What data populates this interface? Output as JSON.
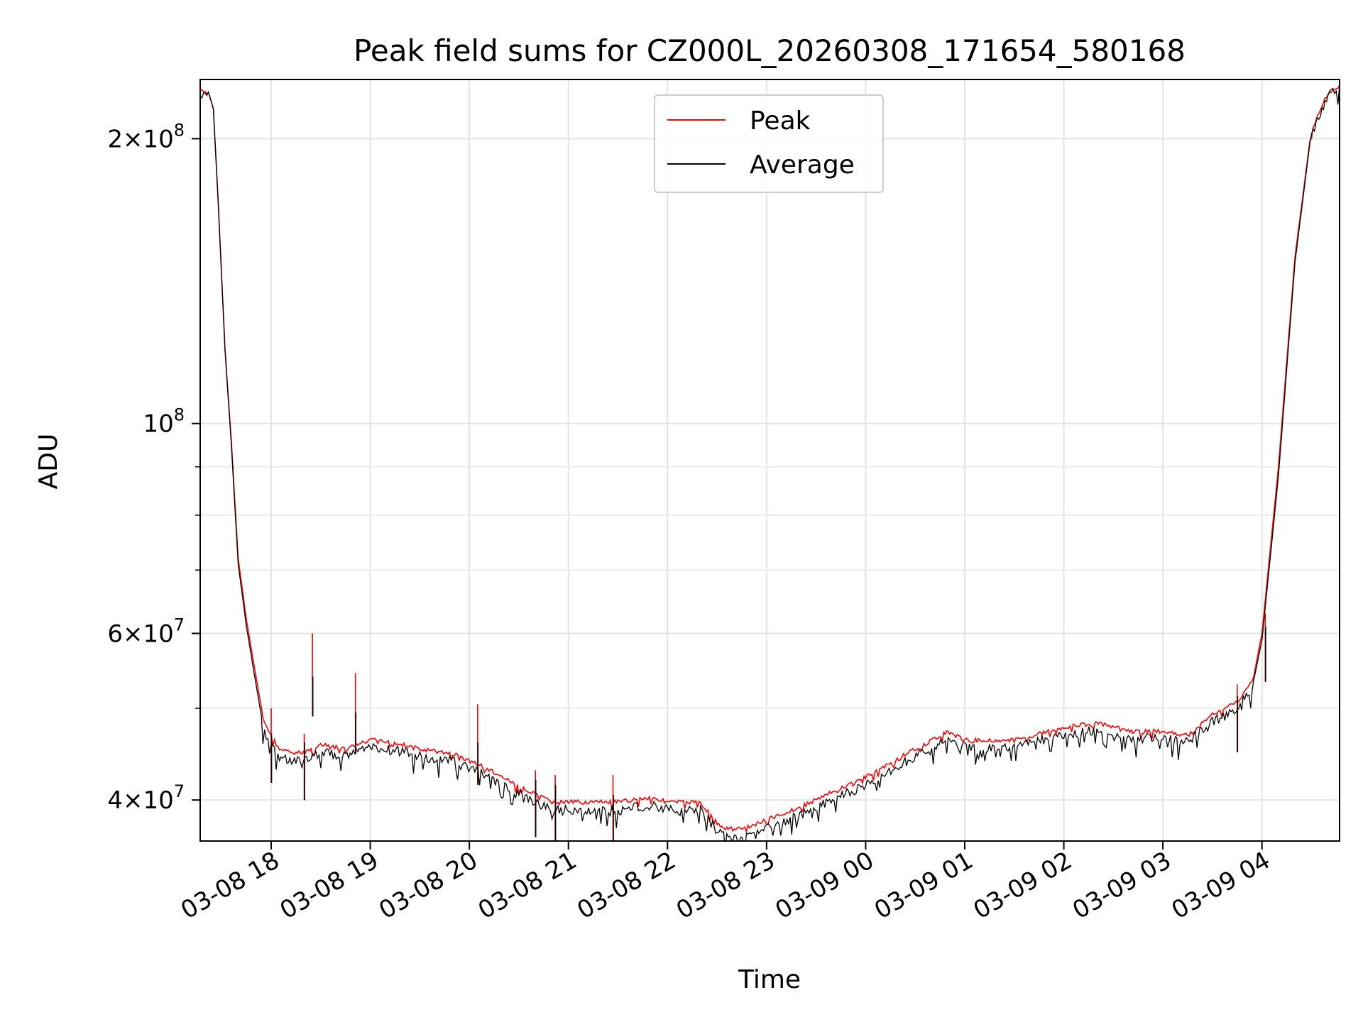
{
  "chart_data": {
    "type": "line",
    "title": "Peak field sums for CZ000L_20260308_171654_580168",
    "xlabel": "Time",
    "ylabel": "ADU",
    "y_scale": "log",
    "ylim": [
      36200000,
      231000000
    ],
    "xlim": [
      "03-08 17:17",
      "03-09 04:47"
    ],
    "grid": true,
    "legend": {
      "placement": "upper center",
      "entries": [
        "Peak",
        "Average"
      ]
    },
    "x_ticks": [
      "03-08 18",
      "03-08 19",
      "03-08 20",
      "03-08 21",
      "03-08 22",
      "03-08 23",
      "03-09 00",
      "03-09 01",
      "03-09 02",
      "03-09 03",
      "03-09 04"
    ],
    "y_ticks_major": [
      {
        "value": 200000000,
        "mantissa": "2",
        "exponent": "8"
      },
      {
        "value": 100000000,
        "mantissa": "",
        "exponent": "8"
      },
      {
        "value": 60000000,
        "mantissa": "6",
        "exponent": "7"
      },
      {
        "value": 40000000,
        "mantissa": "4",
        "exponent": "7"
      }
    ],
    "y_ticks_minor": [
      50000000,
      70000000,
      80000000,
      90000000
    ],
    "series": [
      {
        "name": "Peak",
        "color": "#ff0000",
        "x": [
          "03-08 17:17",
          "03-08 17:22",
          "03-08 17:25",
          "03-08 17:28",
          "03-08 17:32",
          "03-08 17:36",
          "03-08 17:40",
          "03-08 17:45",
          "03-08 17:50",
          "03-08 17:55",
          "03-08 18:00",
          "03-08 18:05",
          "03-08 18:15",
          "03-08 18:25",
          "03-08 18:30",
          "03-08 18:45",
          "03-08 19:00",
          "03-08 19:10",
          "03-08 19:30",
          "03-08 19:50",
          "03-08 20:10",
          "03-08 20:30",
          "03-08 20:50",
          "03-08 21:00",
          "03-08 21:30",
          "03-08 21:50",
          "03-08 22:00",
          "03-08 22:20",
          "03-08 22:30",
          "03-08 22:35",
          "03-08 22:45",
          "03-08 23:00",
          "03-08 23:20",
          "03-08 23:40",
          "03-09 00:00",
          "03-09 00:20",
          "03-09 00:40",
          "03-09 00:50",
          "03-09 01:00",
          "03-09 01:30",
          "03-09 02:00",
          "03-09 02:20",
          "03-09 02:40",
          "03-09 03:00",
          "03-09 03:15",
          "03-09 03:30",
          "03-09 03:45",
          "03-09 03:55",
          "03-09 04:00",
          "03-09 04:10",
          "03-09 04:20",
          "03-09 04:30",
          "03-09 04:40",
          "03-09 04:47"
        ],
        "y": [
          226000000,
          224000000,
          215000000,
          170000000,
          120000000,
          95000000,
          72000000,
          62000000,
          55000000,
          49000000,
          47000000,
          45500000,
          45000000,
          45500000,
          46000000,
          45500000,
          46500000,
          46500000,
          45500000,
          45000000,
          43500000,
          41500000,
          40000000,
          40000000,
          40000000,
          40500000,
          40000000,
          40000000,
          38000000,
          37500000,
          37500000,
          38300000,
          39500000,
          41000000,
          42500000,
          44500000,
          46500000,
          47500000,
          46500000,
          46500000,
          48000000,
          48500000,
          47500000,
          47500000,
          47000000,
          49500000,
          51000000,
          54000000,
          60000000,
          90000000,
          150000000,
          205000000,
          225000000,
          228000000
        ]
      },
      {
        "name": "Average",
        "color": "#000000",
        "x": [
          "03-08 17:17",
          "03-08 17:22",
          "03-08 17:25",
          "03-08 17:28",
          "03-08 17:32",
          "03-08 17:36",
          "03-08 17:40",
          "03-08 17:45",
          "03-08 17:50",
          "03-08 17:55",
          "03-08 18:00",
          "03-08 18:05",
          "03-08 18:15",
          "03-08 18:25",
          "03-08 18:30",
          "03-08 18:45",
          "03-08 19:00",
          "03-08 19:10",
          "03-08 19:30",
          "03-08 19:50",
          "03-08 20:10",
          "03-08 20:30",
          "03-08 20:50",
          "03-08 21:00",
          "03-08 21:30",
          "03-08 21:50",
          "03-08 22:00",
          "03-08 22:20",
          "03-08 22:30",
          "03-08 22:35",
          "03-08 22:45",
          "03-08 23:00",
          "03-08 23:20",
          "03-08 23:40",
          "03-09 00:00",
          "03-09 00:20",
          "03-09 00:40",
          "03-09 00:50",
          "03-09 01:00",
          "03-09 01:30",
          "03-09 02:00",
          "03-09 02:20",
          "03-09 02:40",
          "03-09 03:00",
          "03-09 03:15",
          "03-09 03:30",
          "03-09 03:45",
          "03-09 03:55",
          "03-09 04:00",
          "03-09 04:10",
          "03-09 04:20",
          "03-09 04:30",
          "03-09 04:40",
          "03-09 04:47"
        ],
        "y": [
          226000000,
          224000000,
          215000000,
          170000000,
          120000000,
          94000000,
          71000000,
          61000000,
          54000000,
          48000000,
          46000000,
          45000000,
          44500000,
          45000000,
          45500000,
          45000000,
          46000000,
          46000000,
          45000000,
          44500000,
          43000000,
          41000000,
          39500000,
          39500000,
          39500000,
          40000000,
          39500000,
          39500000,
          37500000,
          37000000,
          37000000,
          37800000,
          39000000,
          40500000,
          42000000,
          44000000,
          46000000,
          47000000,
          46000000,
          46000000,
          47500000,
          48000000,
          47000000,
          47000000,
          46500000,
          49000000,
          50500000,
          53500000,
          59000000,
          88000000,
          148000000,
          204000000,
          225000000,
          228000000
        ]
      }
    ],
    "spikes": [
      {
        "x": "03-08 18:00",
        "peak": 50000000,
        "average": 47000000
      },
      {
        "x": "03-08 18:20",
        "peak": 47000000,
        "average": 46000000
      },
      {
        "x": "03-08 18:25",
        "peak": 60000000,
        "average": 54000000
      },
      {
        "x": "03-08 18:51",
        "peak": 54500000,
        "average": 49500000
      },
      {
        "x": "03-08 20:05",
        "peak": 50500000,
        "average": 46000000
      },
      {
        "x": "03-08 20:40",
        "peak": 43000000,
        "average": 42000000
      },
      {
        "x": "03-08 20:52",
        "peak": 42500000,
        "average": 41500000
      },
      {
        "x": "03-08 21:27",
        "peak": 42500000,
        "average": 40500000
      },
      {
        "x": "03-09 03:45",
        "peak": 53000000,
        "average": 51500000
      },
      {
        "x": "03-09 04:02",
        "peak": 63000000,
        "average": 61000000
      }
    ]
  }
}
